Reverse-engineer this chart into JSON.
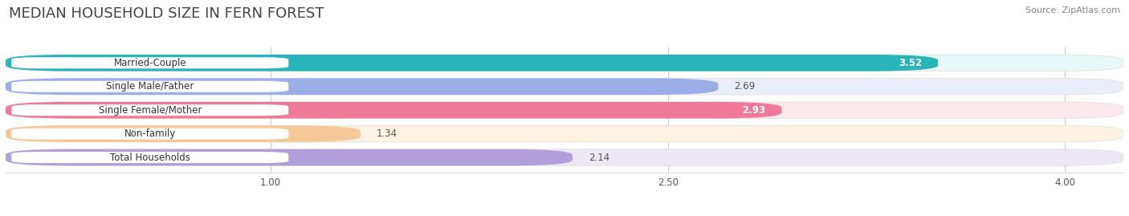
{
  "title": "MEDIAN HOUSEHOLD SIZE IN FERN FOREST",
  "source": "Source: ZipAtlas.com",
  "categories": [
    "Married-Couple",
    "Single Male/Father",
    "Single Female/Mother",
    "Non-family",
    "Total Households"
  ],
  "values": [
    3.52,
    2.69,
    2.93,
    1.34,
    2.14
  ],
  "bar_colors": [
    "#29b5b8",
    "#9baee8",
    "#f07898",
    "#f5c898",
    "#b09fd8"
  ],
  "bar_bg_colors": [
    "#e8f7f8",
    "#eaeef8",
    "#fde8ee",
    "#fef3e2",
    "#eee8f5"
  ],
  "label_border_colors": [
    "#29b5b8",
    "#9baee8",
    "#f07898",
    "#f5c898",
    "#b09fd8"
  ],
  "value_inside": [
    true,
    false,
    true,
    false,
    false
  ],
  "xlim": [
    0,
    4.22
  ],
  "xmin": 0,
  "xticks": [
    1.0,
    2.5,
    4.0
  ],
  "figsize": [
    14.06,
    2.69
  ],
  "dpi": 100,
  "bar_height": 0.7,
  "title_fontsize": 13,
  "label_fontsize": 8.5,
  "value_fontsize": 8.5
}
